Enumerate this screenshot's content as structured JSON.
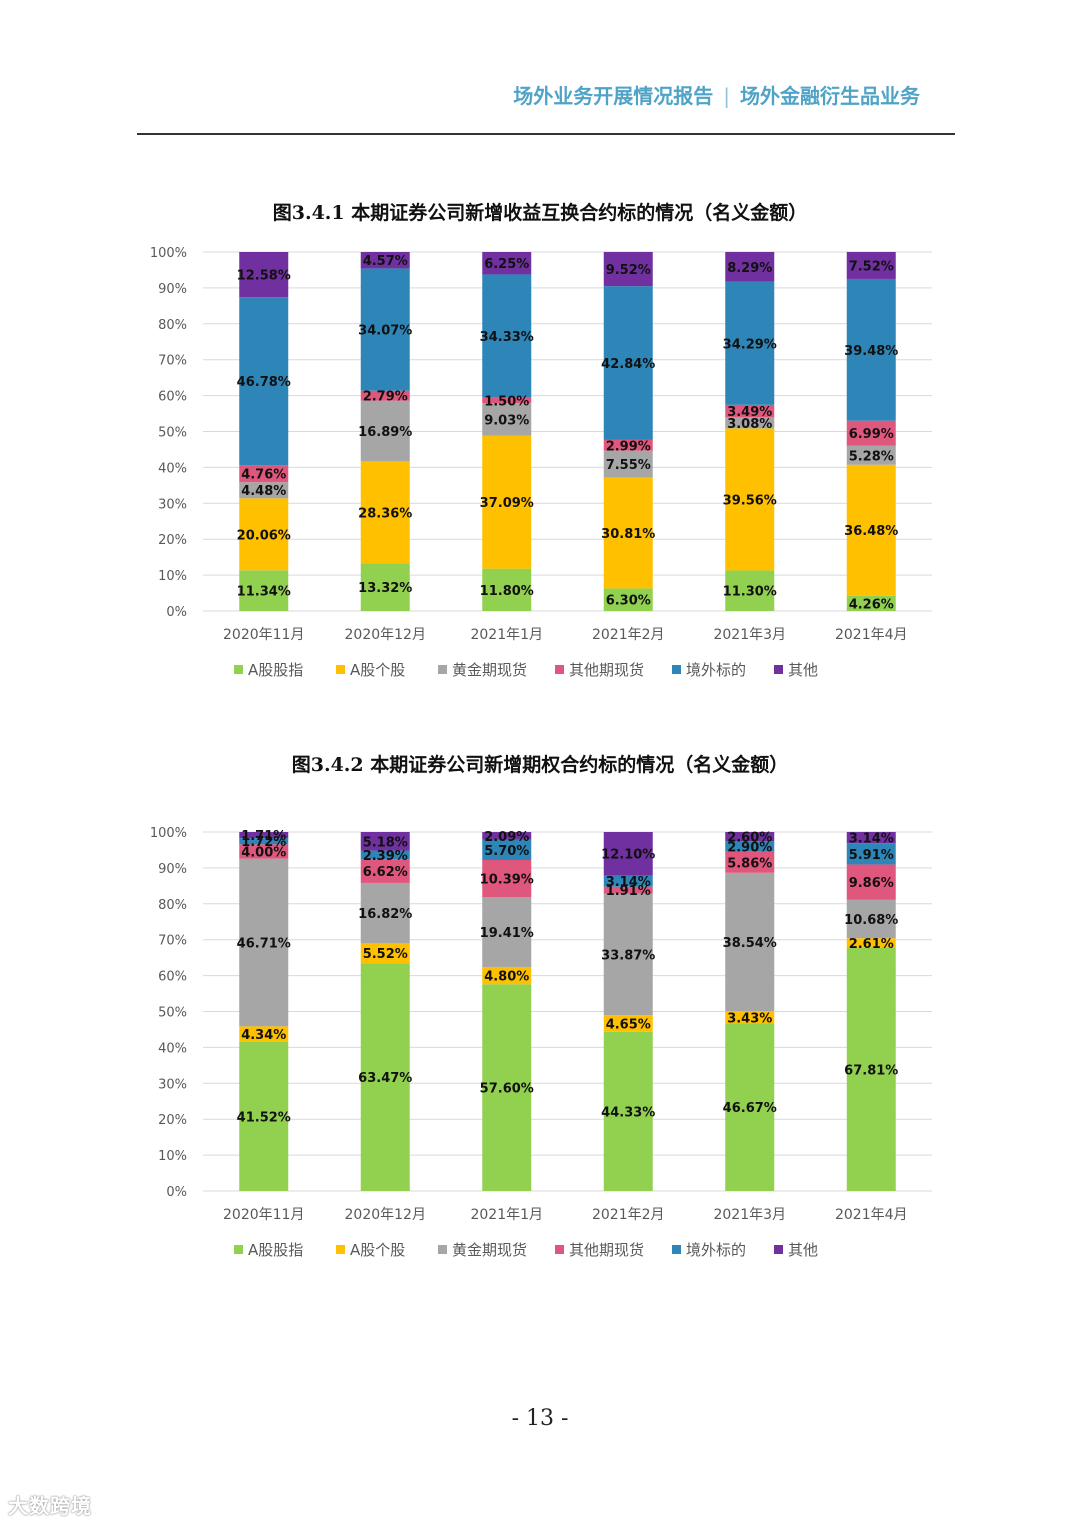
{
  "header": {
    "left": "场外业务开展情况报告",
    "separator": "|",
    "right": "场外金融衍生品业务"
  },
  "page_number": "- 13 -",
  "watermark": "大数跨境",
  "colors": {
    "A股股指": "#92d050",
    "A股个股": "#ffc000",
    "黄金期现货": "#a6a6a6",
    "其他期现货": "#e0577e",
    "境外标的": "#2e86b8",
    "其他": "#7030a0",
    "axis_text": "#595959",
    "grid": "#d9d9d9"
  },
  "chart_data": [
    {
      "type": "bar",
      "stacked": "percent",
      "title": "图3.4.1 本期证券公司新增收益互换合约标的情况（名义金额）",
      "categories": [
        "2020年11月",
        "2020年12月",
        "2021年1月",
        "2021年2月",
        "2021年3月",
        "2021年4月"
      ],
      "yticks": [
        "0%",
        "10%",
        "20%",
        "30%",
        "40%",
        "50%",
        "60%",
        "70%",
        "80%",
        "90%",
        "100%"
      ],
      "ylim": [
        0,
        100
      ],
      "grid": true,
      "legend_position": "bottom",
      "series": [
        {
          "name": "A股股指",
          "values": [
            11.34,
            13.32,
            11.8,
            6.3,
            11.3,
            4.26
          ],
          "labels": [
            "11.34%",
            "13.32%",
            "11.80%",
            "6.30%",
            "11.30%",
            "4.26%"
          ]
        },
        {
          "name": "A股个股",
          "values": [
            20.06,
            28.36,
            37.09,
            30.81,
            39.56,
            36.48
          ],
          "labels": [
            "20.06%",
            "28.36%",
            "37.09%",
            "30.81%",
            "39.56%",
            "36.48%"
          ]
        },
        {
          "name": "黄金期现货",
          "values": [
            4.48,
            16.89,
            9.03,
            7.55,
            3.08,
            5.28
          ],
          "labels": [
            "4.48%",
            "16.89%",
            "9.03%",
            "7.55%",
            "3.08%",
            "5.28%"
          ]
        },
        {
          "name": "其他期现货",
          "values": [
            4.76,
            2.79,
            1.5,
            2.99,
            3.49,
            6.99
          ],
          "labels": [
            "4.76%",
            "2.79%",
            "1.50%",
            "2.99%",
            "3.49%",
            "6.99%"
          ]
        },
        {
          "name": "境外标的",
          "values": [
            46.78,
            34.07,
            34.33,
            42.84,
            34.29,
            39.48
          ],
          "labels": [
            "46.78%",
            "34.07%",
            "34.33%",
            "42.84%",
            "34.29%",
            "39.48%"
          ]
        },
        {
          "name": "其他",
          "values": [
            12.58,
            4.57,
            6.25,
            9.52,
            8.29,
            7.52
          ],
          "labels": [
            "12.58%",
            "4.57%",
            "6.25%",
            "9.52%",
            "8.29%",
            "7.52%"
          ]
        }
      ]
    },
    {
      "type": "bar",
      "stacked": "percent",
      "title": "图3.4.2 本期证券公司新增期权合约标的情况（名义金额）",
      "categories": [
        "2020年11月",
        "2020年12月",
        "2021年1月",
        "2021年2月",
        "2021年3月",
        "2021年4月"
      ],
      "yticks": [
        "0%",
        "10%",
        "20%",
        "30%",
        "40%",
        "50%",
        "60%",
        "70%",
        "80%",
        "90%",
        "100%"
      ],
      "ylim": [
        0,
        100
      ],
      "grid": true,
      "legend_position": "bottom",
      "series": [
        {
          "name": "A股股指",
          "values": [
            41.52,
            63.47,
            57.6,
            44.33,
            46.67,
            67.81
          ],
          "labels": [
            "41.52%",
            "63.47%",
            "57.60%",
            "44.33%",
            "46.67%",
            "67.81%"
          ]
        },
        {
          "name": "A股个股",
          "values": [
            4.34,
            5.52,
            4.8,
            4.65,
            3.43,
            2.61
          ],
          "labels": [
            "4.34%",
            "5.52%",
            "4.80%",
            "4.65%",
            "3.43%",
            "2.61%"
          ]
        },
        {
          "name": "黄金期现货",
          "values": [
            46.71,
            16.82,
            19.41,
            33.87,
            38.54,
            10.68
          ],
          "labels": [
            "46.71%",
            "16.82%",
            "19.41%",
            "33.87%",
            "38.54%",
            "10.68%"
          ]
        },
        {
          "name": "其他期现货",
          "values": [
            4.0,
            6.62,
            10.39,
            1.91,
            5.86,
            9.86
          ],
          "labels": [
            "4.00%",
            "6.62%",
            "10.39%",
            "1.91%",
            "5.86%",
            "9.86%"
          ]
        },
        {
          "name": "境外标的",
          "values": [
            1.72,
            2.39,
            5.7,
            3.14,
            2.9,
            5.91
          ],
          "labels": [
            "1.72%",
            "2.39%",
            "5.70%",
            "3.14%",
            "2.90%",
            "5.91%"
          ]
        },
        {
          "name": "其他",
          "values": [
            1.71,
            5.18,
            2.09,
            12.1,
            2.6,
            3.14
          ],
          "labels": [
            "1.71%",
            "5.18%",
            "2.09%",
            "12.10%",
            "2.60%",
            "3.14%"
          ]
        }
      ]
    }
  ]
}
